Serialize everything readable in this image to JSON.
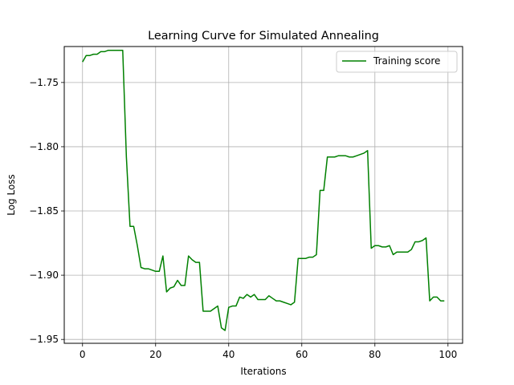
{
  "chart_data": {
    "type": "line",
    "title": "Learning Curve for Simulated Annealing",
    "xlabel": "Iterations",
    "ylabel": "Log Loss",
    "xlim": [
      -5,
      104
    ],
    "ylim": [
      -1.953,
      -1.722
    ],
    "xticks": [
      0,
      20,
      40,
      60,
      80,
      100
    ],
    "xtick_labels": [
      "0",
      "20",
      "40",
      "60",
      "80",
      "100"
    ],
    "yticks": [
      -1.75,
      -1.8,
      -1.85,
      -1.9,
      -1.95
    ],
    "ytick_labels": [
      "−1.75",
      "−1.80",
      "−1.85",
      "−1.90",
      "−1.95"
    ],
    "grid": true,
    "legend_position": "top-right",
    "series": [
      {
        "name": "Training score",
        "color": "#008000",
        "x": [
          0,
          1,
          2,
          3,
          4,
          5,
          6,
          7,
          8,
          9,
          10,
          11,
          12,
          13,
          14,
          15,
          16,
          17,
          18,
          19,
          20,
          21,
          22,
          23,
          24,
          25,
          26,
          27,
          28,
          29,
          30,
          31,
          32,
          33,
          34,
          35,
          36,
          37,
          38,
          39,
          40,
          41,
          42,
          43,
          44,
          45,
          46,
          47,
          48,
          49,
          50,
          51,
          52,
          53,
          54,
          55,
          56,
          57,
          58,
          59,
          60,
          61,
          62,
          63,
          64,
          65,
          66,
          67,
          68,
          69,
          70,
          71,
          72,
          73,
          74,
          75,
          76,
          77,
          78,
          79,
          80,
          81,
          82,
          83,
          84,
          85,
          86,
          87,
          88,
          89,
          90,
          91,
          92,
          93,
          94,
          95,
          96,
          97,
          98,
          99
        ],
        "y": [
          -1.734,
          -1.729,
          -1.729,
          -1.728,
          -1.728,
          -1.726,
          -1.726,
          -1.725,
          -1.725,
          -1.725,
          -1.725,
          -1.725,
          -1.808,
          -1.862,
          -1.862,
          -1.877,
          -1.894,
          -1.895,
          -1.895,
          -1.896,
          -1.897,
          -1.897,
          -1.885,
          -1.913,
          -1.91,
          -1.909,
          -1.904,
          -1.908,
          -1.908,
          -1.885,
          -1.888,
          -1.89,
          -1.89,
          -1.928,
          -1.928,
          -1.928,
          -1.926,
          -1.924,
          -1.941,
          -1.943,
          -1.925,
          -1.924,
          -1.924,
          -1.917,
          -1.918,
          -1.915,
          -1.917,
          -1.915,
          -1.919,
          -1.919,
          -1.919,
          -1.916,
          -1.918,
          -1.92,
          -1.92,
          -1.921,
          -1.922,
          -1.923,
          -1.921,
          -1.887,
          -1.887,
          -1.887,
          -1.886,
          -1.886,
          -1.884,
          -1.834,
          -1.834,
          -1.808,
          -1.808,
          -1.808,
          -1.807,
          -1.807,
          -1.807,
          -1.808,
          -1.808,
          -1.807,
          -1.806,
          -1.805,
          -1.803,
          -1.879,
          -1.877,
          -1.877,
          -1.878,
          -1.878,
          -1.877,
          -1.884,
          -1.882,
          -1.882,
          -1.882,
          -1.882,
          -1.88,
          -1.874,
          -1.874,
          -1.873,
          -1.871,
          -1.92,
          -1.917,
          -1.917,
          -1.92,
          -1.92
        ]
      }
    ]
  }
}
